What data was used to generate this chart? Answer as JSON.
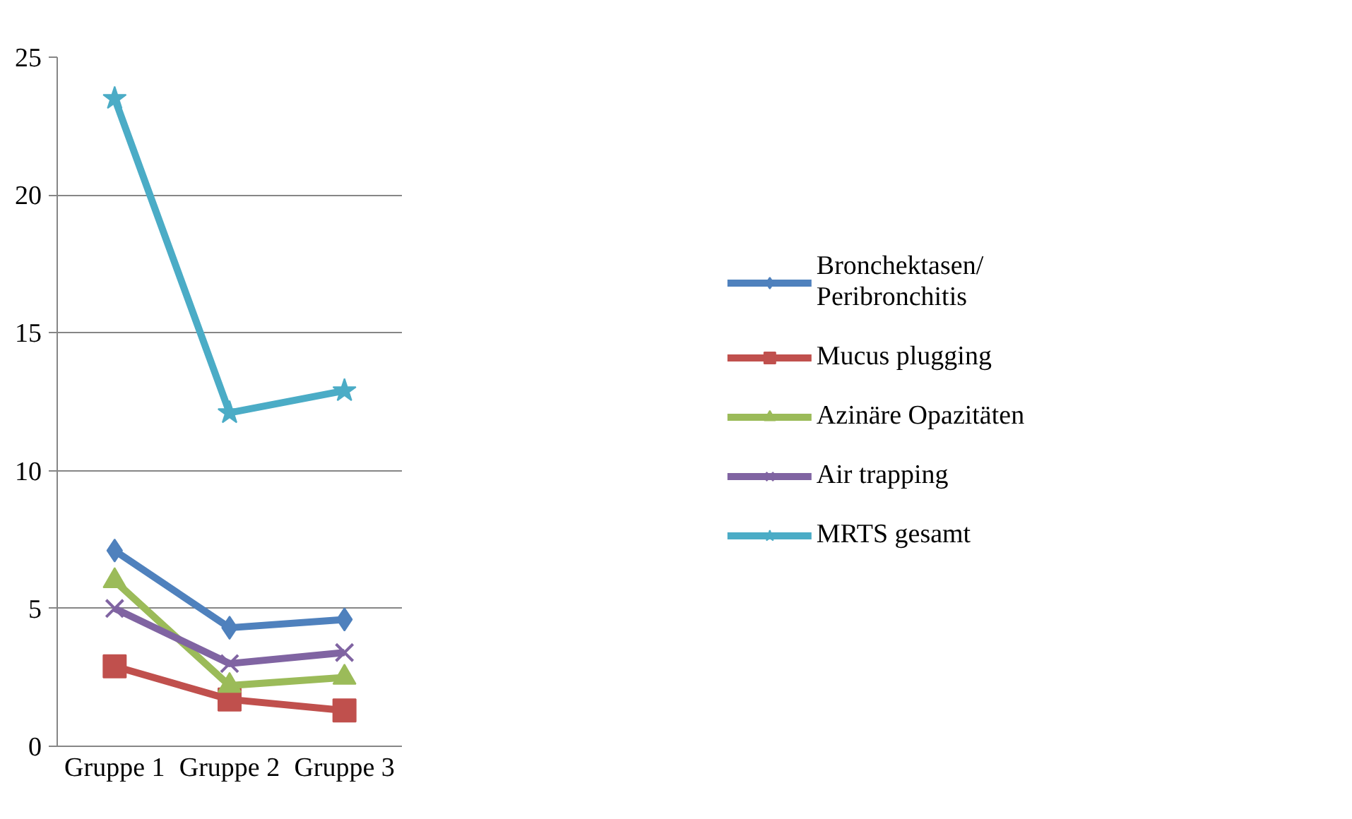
{
  "chart_data": {
    "type": "line",
    "categories": [
      "Gruppe 1",
      "Gruppe 2",
      "Gruppe 3"
    ],
    "series": [
      {
        "name": "Bronchektasen/\nPeribronchitis",
        "color": "#4f81bd",
        "marker": "diamond",
        "values": [
          7.1,
          4.3,
          4.6
        ]
      },
      {
        "name": "Mucus plugging",
        "color": "#c0504d",
        "marker": "square",
        "values": [
          2.9,
          1.7,
          1.3
        ]
      },
      {
        "name": "Azinäre Opazitäten",
        "color": "#9bbb59",
        "marker": "triangle",
        "values": [
          6.0,
          2.2,
          2.5
        ]
      },
      {
        "name": "Air trapping",
        "color": "#8064a2",
        "marker": "cross",
        "values": [
          5.0,
          3.0,
          3.4
        ]
      },
      {
        "name": "MRTS gesamt",
        "color": "#4bacc6",
        "marker": "star",
        "values": [
          23.5,
          12.1,
          12.9
        ]
      }
    ],
    "ylim": [
      0,
      25
    ],
    "yticks": [
      0,
      5,
      10,
      15,
      20,
      25
    ],
    "grid": "y",
    "legend": "right",
    "line_style": "solid"
  }
}
